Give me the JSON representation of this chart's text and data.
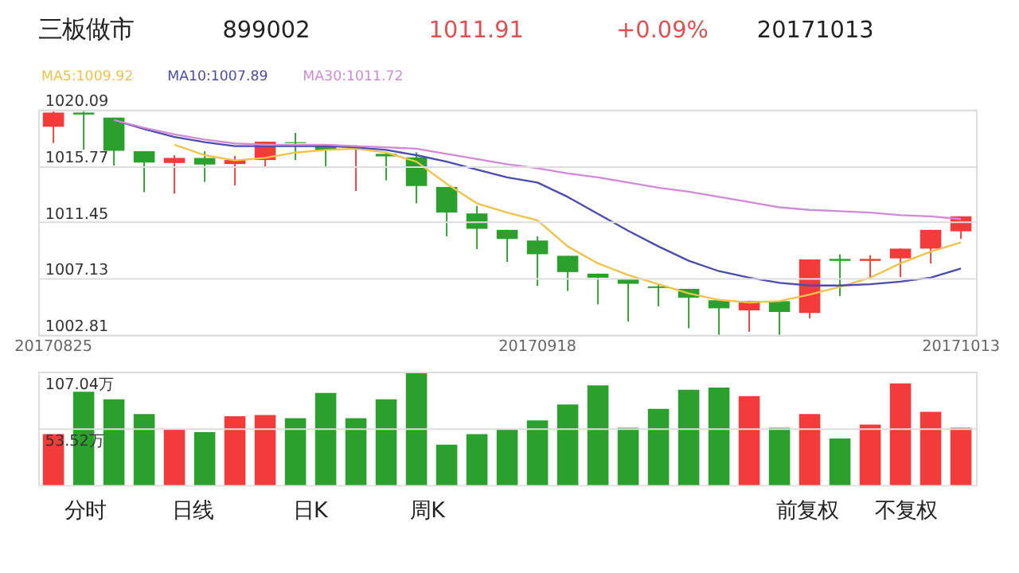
{
  "chart_data": [
    {
      "type": "candlestick",
      "title": "三板做市",
      "annotations": [
        "899002",
        "1011.91",
        "+0.09%",
        "20171013"
      ],
      "categories": [
        "20170825",
        null,
        null,
        null,
        null,
        null,
        null,
        null,
        null,
        null,
        null,
        null,
        null,
        null,
        null,
        null,
        "20170918",
        null,
        null,
        null,
        null,
        null,
        null,
        null,
        null,
        null,
        null,
        null,
        null,
        null,
        "20171013"
      ],
      "ohlc": [
        [
          1018.78,
          1019.95,
          1017.53,
          1019.87
        ],
        [
          1019.87,
          1019.95,
          1017.02,
          1019.72
        ],
        [
          1019.48,
          1019.48,
          1015.8,
          1016.94
        ],
        [
          1016.9,
          1016.9,
          1013.77,
          1016.04
        ],
        [
          1016.0,
          1016.59,
          1013.65,
          1016.39
        ],
        [
          1016.39,
          1016.9,
          1014.55,
          1015.88
        ],
        [
          1015.92,
          1016.55,
          1014.28,
          1016.23
        ],
        [
          1016.23,
          1017.64,
          1015.65,
          1017.64
        ],
        [
          1017.6,
          1018.31,
          1016.23,
          1017.53
        ],
        [
          1017.41,
          1017.41,
          1015.73,
          1016.98
        ],
        [
          1017.21,
          1017.37,
          1013.85,
          1017.29
        ],
        [
          1016.7,
          1016.7,
          1014.67,
          1016.51
        ],
        [
          1016.43,
          1016.82,
          1012.91,
          1014.24
        ],
        [
          1014.16,
          1014.16,
          1010.37,
          1012.2
        ],
        [
          1012.13,
          1012.71,
          1009.39,
          1010.95
        ],
        [
          1010.87,
          1010.87,
          1008.41,
          1010.17
        ],
        [
          1010.05,
          1010.37,
          1006.57,
          1009.0
        ],
        [
          1008.88,
          1008.88,
          1006.18,
          1007.63
        ],
        [
          1007.51,
          1007.51,
          1005.16,
          1007.2
        ],
        [
          1007.12,
          1007.12,
          1003.83,
          1006.73
        ],
        [
          1006.53,
          1006.73,
          1005.0,
          1006.41
        ],
        [
          1006.34,
          1006.34,
          1003.32,
          1005.67
        ],
        [
          1005.47,
          1005.47,
          1002.81,
          1004.85
        ],
        [
          1004.69,
          1005.4,
          1003.05,
          1005.4
        ],
        [
          1005.4,
          1005.4,
          1002.81,
          1004.57
        ],
        [
          1004.5,
          1008.6,
          1004.07,
          1008.6
        ],
        [
          1008.64,
          1008.99,
          1005.79,
          1008.49
        ],
        [
          1008.49,
          1008.92,
          1007.24,
          1008.64
        ],
        [
          1008.68,
          1009.43,
          1007.24,
          1009.43
        ],
        [
          1009.43,
          1010.87,
          1008.29,
          1010.87
        ],
        [
          1010.76,
          1011.91,
          1010.17,
          1011.91
        ]
      ],
      "colors": [
        "#f23c3c",
        "#2ca02c",
        "#2ca02c",
        "#2ca02c",
        "#f23c3c",
        "#2ca02c",
        "#f23c3c",
        "#f23c3c",
        "#2ca02c",
        "#2ca02c",
        "#f23c3c",
        "#2ca02c",
        "#2ca02c",
        "#2ca02c",
        "#2ca02c",
        "#2ca02c",
        "#2ca02c",
        "#2ca02c",
        "#2ca02c",
        "#2ca02c",
        "#2ca02c",
        "#2ca02c",
        "#2ca02c",
        "#f23c3c",
        "#2ca02c",
        "#f23c3c",
        "#2ca02c",
        "#f23c3c",
        "#f23c3c",
        "#f23c3c",
        "#f23c3c"
      ],
      "series": [
        {
          "name": "MA5:1009.92",
          "type": "line",
          "color": "#f0c348",
          "values": [
            null,
            null,
            null,
            null,
            1017.4,
            1016.6,
            1016.2,
            1016.4,
            1016.8,
            1017.0,
            1017.1,
            1016.8,
            1016.1,
            1014.4,
            1012.9,
            1012.2,
            1011.6,
            1009.6,
            1008.3,
            1007.4,
            1006.7,
            1006.0,
            1005.5,
            1005.3,
            1005.4,
            1005.9,
            1006.5,
            1007.2,
            1008.3,
            1009.2,
            1009.9
          ]
        },
        {
          "name": "MA10:1007.89",
          "type": "line",
          "color": "#4b4bb0",
          "values": [
            null,
            null,
            1019.3,
            1018.6,
            1018.0,
            1017.6,
            1017.3,
            1017.3,
            1017.3,
            1017.3,
            1017.2,
            1017.0,
            1016.6,
            1016.1,
            1015.5,
            1014.9,
            1014.5,
            1013.4,
            1012.1,
            1010.8,
            1009.6,
            1008.5,
            1007.7,
            1007.2,
            1006.8,
            1006.6,
            1006.6,
            1006.7,
            1006.9,
            1007.2,
            1007.9
          ]
        },
        {
          "name": "MA30:1011.72",
          "type": "line",
          "color": "#d18ad8",
          "values": [
            null,
            null,
            1019.3,
            1018.7,
            1018.2,
            1017.8,
            1017.5,
            1017.4,
            1017.4,
            1017.4,
            1017.3,
            1017.2,
            1017.1,
            1016.7,
            1016.3,
            1015.9,
            1015.6,
            1015.2,
            1014.9,
            1014.5,
            1014.1,
            1013.8,
            1013.4,
            1013.0,
            1012.6,
            1012.4,
            1012.3,
            1012.2,
            1012.0,
            1011.9,
            1011.7
          ]
        }
      ],
      "ylim": [
        1002.81,
        1020.09
      ],
      "yticks": [
        1002.81,
        1007.13,
        1011.45,
        1015.77,
        1020.09
      ],
      "grid": "y"
    },
    {
      "type": "bar",
      "annotations": [
        "分时",
        "日线",
        "日K",
        "周K",
        "前复权",
        "不复权"
      ],
      "categories": [
        null,
        null,
        null,
        null,
        null,
        null,
        null,
        null,
        null,
        null,
        null,
        null,
        null,
        null,
        null,
        null,
        null,
        null,
        null,
        null,
        null,
        null,
        null,
        null,
        null,
        null,
        null,
        null,
        null,
        null,
        null
      ],
      "values": [
        48,
        88,
        81,
        67,
        53,
        50,
        65,
        66,
        63,
        87,
        63,
        81,
        107,
        38,
        48,
        53,
        61,
        76,
        94,
        54,
        72,
        90,
        92,
        84,
        54,
        67,
        44,
        57,
        96,
        69,
        54
      ],
      "colors": [
        "#f23c3c",
        "#2ca02c",
        "#2ca02c",
        "#2ca02c",
        "#f23c3c",
        "#2ca02c",
        "#f23c3c",
        "#f23c3c",
        "#2ca02c",
        "#2ca02c",
        "#2ca02c",
        "#2ca02c",
        "#2ca02c",
        "#2ca02c",
        "#2ca02c",
        "#2ca02c",
        "#2ca02c",
        "#2ca02c",
        "#2ca02c",
        "#2ca02c",
        "#2ca02c",
        "#2ca02c",
        "#2ca02c",
        "#f23c3c",
        "#2ca02c",
        "#f23c3c",
        "#2ca02c",
        "#f23c3c",
        "#f23c3c",
        "#f23c3c",
        "#f23c3c"
      ],
      "ylim": [
        0,
        107.04
      ],
      "yticks": [
        {
          "value": 53.52,
          "label": "53.52万"
        },
        {
          "value": 107.04,
          "label": "107.04万"
        }
      ],
      "grid": "y",
      "tick_labels": "y"
    }
  ]
}
